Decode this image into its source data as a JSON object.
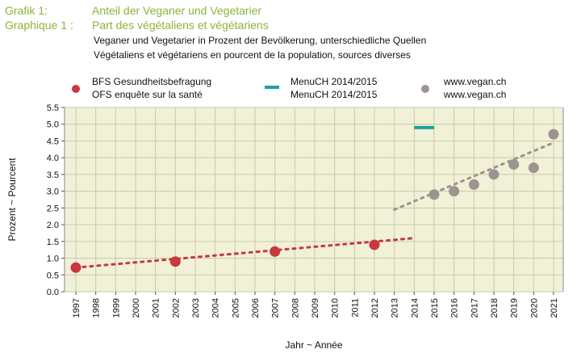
{
  "header": {
    "label_de": "Grafik 1:",
    "label_fr": "Graphique 1 :",
    "title_de": "Anteil der Veganer und Vegetarier",
    "title_fr": "Part des végétaliens et végétariens",
    "subtitle_de": "Veganer und Vegetarier in Prozent der Bevölkerung, unterschiedliche Quellen",
    "subtitle_fr": "Végétaliens et végétariens en pourcent de la population, sources diverses"
  },
  "legend": {
    "placement": "top",
    "items": [
      {
        "line1": "BFS Gesundheitsbefragung",
        "line2": "OFS enquête sur la santé",
        "marker": "dot",
        "color": "#c8383f"
      },
      {
        "line1": "MenuCH 2014/2015",
        "line2": "MenuCH 2014/2015",
        "marker": "line",
        "color": "#1aa39a"
      },
      {
        "line1": "www.vegan.ch",
        "line2": "www.vegan.ch",
        "marker": "dot",
        "color": "#9e938f"
      }
    ]
  },
  "colors": {
    "plot_background": "#f1f1d8",
    "grid": "#c9c9a8",
    "title_accent": "#8cb33a",
    "ofs": "#c8383f",
    "menuch": "#1aa39a",
    "vegan": "#9e938f"
  },
  "chart_data": {
    "type": "scatter",
    "xlabel": "Jahr  ~  Année",
    "ylabel": "Prozent  ~  Pourcent",
    "xlim": [
      1997,
      2021
    ],
    "ylim": [
      0,
      5.5
    ],
    "grid": true,
    "x_ticks": [
      "1997",
      "1998",
      "1999",
      "2000",
      "2001",
      "2002",
      "2003",
      "2004",
      "2005",
      "2006",
      "2007",
      "2008",
      "2009",
      "2010",
      "2011",
      "2012",
      "2013",
      "2014",
      "2015",
      "2016",
      "2017",
      "2018",
      "2019",
      "2020",
      "2021"
    ],
    "y_ticks": [
      "0.0",
      "0.5",
      "1.0",
      "1.5",
      "2.0",
      "2.5",
      "3.0",
      "3.5",
      "4.0",
      "4.5",
      "5.0",
      "5.5"
    ],
    "series": [
      {
        "name": "BFS Gesundheitsbefragung / OFS enquête sur la santé",
        "marker": "dot",
        "points": [
          {
            "x": 1997,
            "y": 0.72
          },
          {
            "x": 2002,
            "y": 0.9
          },
          {
            "x": 2007,
            "y": 1.2
          },
          {
            "x": 2012,
            "y": 1.4
          }
        ],
        "trend": [
          {
            "x": 1997,
            "y": 0.72
          },
          {
            "x": 2014,
            "y": 1.6
          }
        ]
      },
      {
        "name": "MenuCH 2014/2015",
        "marker": "line",
        "segment": [
          {
            "x": 2014,
            "y": 4.9
          },
          {
            "x": 2015,
            "y": 4.9
          }
        ]
      },
      {
        "name": "www.vegan.ch",
        "marker": "dot",
        "points": [
          {
            "x": 2015,
            "y": 2.9
          },
          {
            "x": 2016,
            "y": 3.0
          },
          {
            "x": 2017,
            "y": 3.2
          },
          {
            "x": 2018,
            "y": 3.5
          },
          {
            "x": 2019,
            "y": 3.8
          },
          {
            "x": 2020,
            "y": 3.7
          },
          {
            "x": 2021,
            "y": 4.7
          }
        ],
        "trend": [
          {
            "x": 2013,
            "y": 2.45
          },
          {
            "x": 2021,
            "y": 4.45
          }
        ]
      }
    ]
  }
}
